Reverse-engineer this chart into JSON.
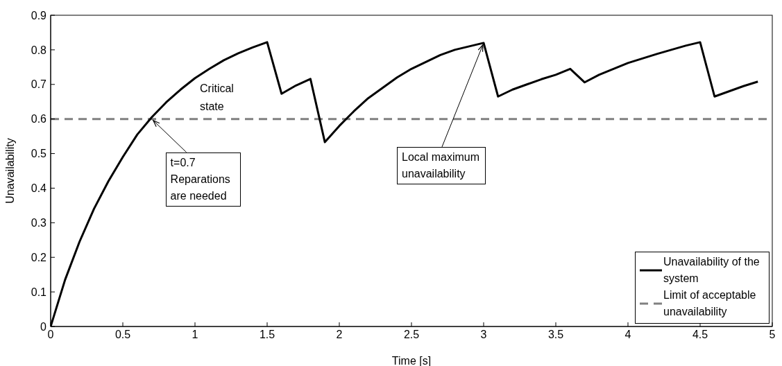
{
  "chart_data": {
    "type": "line",
    "xlabel": "Time [s]",
    "ylabel": "Unavailability",
    "x": [
      0,
      0.1,
      0.2,
      0.3,
      0.4,
      0.5,
      0.6,
      0.7,
      0.8,
      0.9,
      1.0,
      1.1,
      1.2,
      1.3,
      1.4,
      1.5,
      1.6,
      1.7,
      1.8,
      1.9,
      2.0,
      2.1,
      2.2,
      2.3,
      2.4,
      2.5,
      2.6,
      2.7,
      2.8,
      2.9,
      3.0,
      3.1,
      3.2,
      3.3,
      3.4,
      3.5,
      3.6,
      3.7,
      3.8,
      3.9,
      4.0,
      4.1,
      4.2,
      4.3,
      4.4,
      4.5,
      4.6,
      4.7,
      4.8,
      4.9
    ],
    "series": [
      {
        "name": "Unavailability of the system",
        "color": "#000000",
        "values": [
          0,
          0.135,
          0.245,
          0.34,
          0.42,
          0.49,
          0.555,
          0.605,
          0.648,
          0.685,
          0.718,
          0.745,
          0.77,
          0.79,
          0.807,
          0.822,
          0.673,
          0.697,
          0.716,
          0.533,
          0.58,
          0.622,
          0.66,
          0.69,
          0.72,
          0.745,
          0.765,
          0.785,
          0.8,
          0.81,
          0.82,
          0.665,
          0.685,
          0.7,
          0.715,
          0.728,
          0.745,
          0.706,
          0.728,
          0.745,
          0.762,
          0.775,
          0.788,
          0.8,
          0.812,
          0.822,
          0.665,
          0.68,
          0.695,
          0.708
        ]
      }
    ],
    "ref_lines": [
      {
        "axis": "y",
        "value": 0.6,
        "label": "Limit of acceptable  unavailability",
        "color": "#808080",
        "line_style": "dashed"
      }
    ],
    "annotations": [
      "Critical state",
      {
        "text": "t=0.7 Reparations are needed",
        "x": 0.7,
        "y": 0.6
      },
      {
        "text": "Local maximum unavailability",
        "x": 3.0,
        "y": 0.82
      }
    ],
    "xlim": [
      0,
      5
    ],
    "xticks": [
      0,
      0.5,
      1,
      1.5,
      2,
      2.5,
      3,
      3.5,
      4,
      4.5,
      5
    ],
    "ylim": [
      0,
      0.9
    ],
    "yticks": [
      0,
      0.1,
      0.2,
      0.3,
      0.4,
      0.5,
      0.6,
      0.7,
      0.8,
      0.9
    ],
    "grid": false,
    "legend": "bottom right",
    "marker": "none",
    "line_style": "solid"
  }
}
